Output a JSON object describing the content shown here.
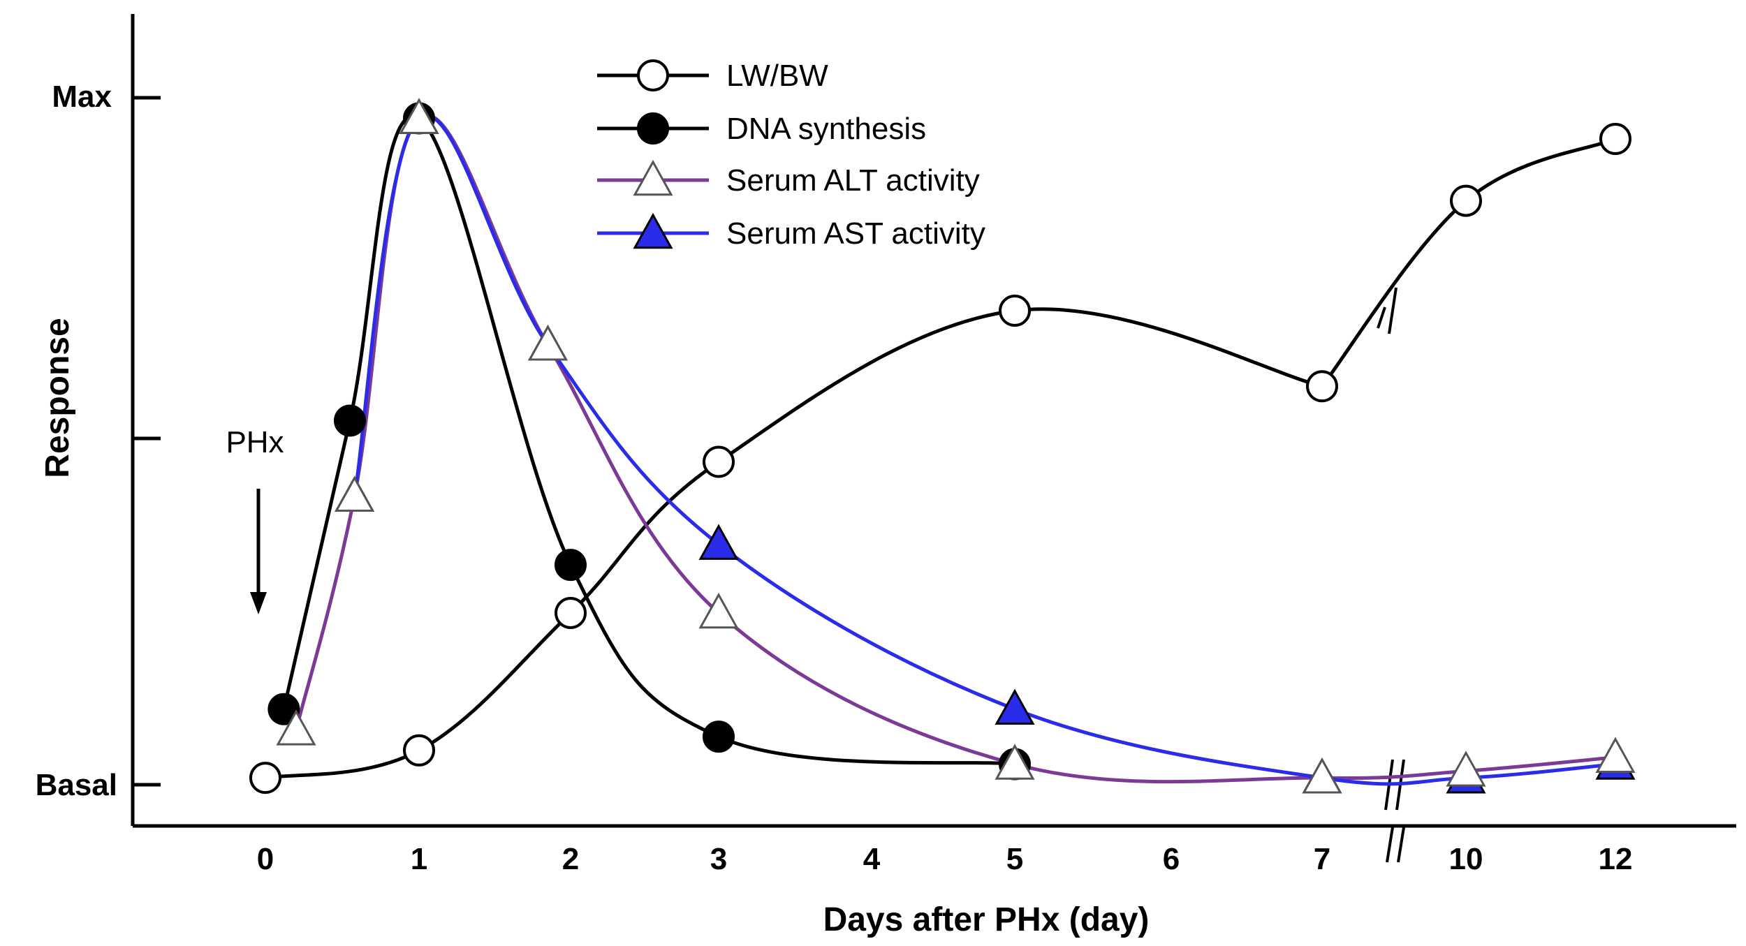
{
  "chart_data": {
    "type": "line",
    "xlabel": "Days after PHx (day)",
    "ylabel": "Response",
    "y_tick_labels": {
      "max": "Max",
      "basal": "Basal"
    },
    "ylim": [
      0,
      100
    ],
    "x_ticks": [
      {
        "value": 0,
        "label": "0"
      },
      {
        "value": 1,
        "label": "1"
      },
      {
        "value": 2,
        "label": "2"
      },
      {
        "value": 3,
        "label": "3"
      },
      {
        "value": 4,
        "label": "4"
      },
      {
        "value": 5,
        "label": "5"
      },
      {
        "value": 6,
        "label": "6"
      },
      {
        "value": 7,
        "label": "7"
      },
      {
        "value": 10,
        "label": "10"
      },
      {
        "value": 12,
        "label": "12"
      }
    ],
    "axis_break_between": [
      7,
      10
    ],
    "annotation": {
      "label": "PHx",
      "at_x": 0
    },
    "series": [
      {
        "name": "LW/BW",
        "color": "#000000",
        "marker": "open-circle",
        "x": [
          0,
          1,
          2,
          3,
          5,
          7,
          10,
          12
        ],
        "y": [
          1,
          5,
          25,
          47,
          69,
          58,
          85,
          94
        ]
      },
      {
        "name": "DNA synthesis",
        "color": "#000000",
        "marker": "filled-circle",
        "x": [
          0.12,
          0.55,
          1,
          2,
          3,
          5
        ],
        "y": [
          11,
          53,
          97,
          32,
          7,
          3
        ]
      },
      {
        "name": "Serum ALT activity",
        "color": "#7a3a96",
        "marker": "open-triangle",
        "x": [
          0.2,
          0.58,
          1,
          1.85,
          3,
          5,
          7,
          10,
          12
        ],
        "y": [
          8,
          42,
          97,
          64,
          25,
          3,
          1,
          2,
          4
        ]
      },
      {
        "name": "Serum AST activity",
        "color": "#2b2bea",
        "marker": "filled-triangle",
        "x": [
          0.58,
          1,
          1.85,
          3,
          5,
          7,
          10,
          12
        ],
        "y": [
          42,
          97,
          64,
          35,
          11,
          1,
          1,
          3
        ]
      }
    ]
  }
}
